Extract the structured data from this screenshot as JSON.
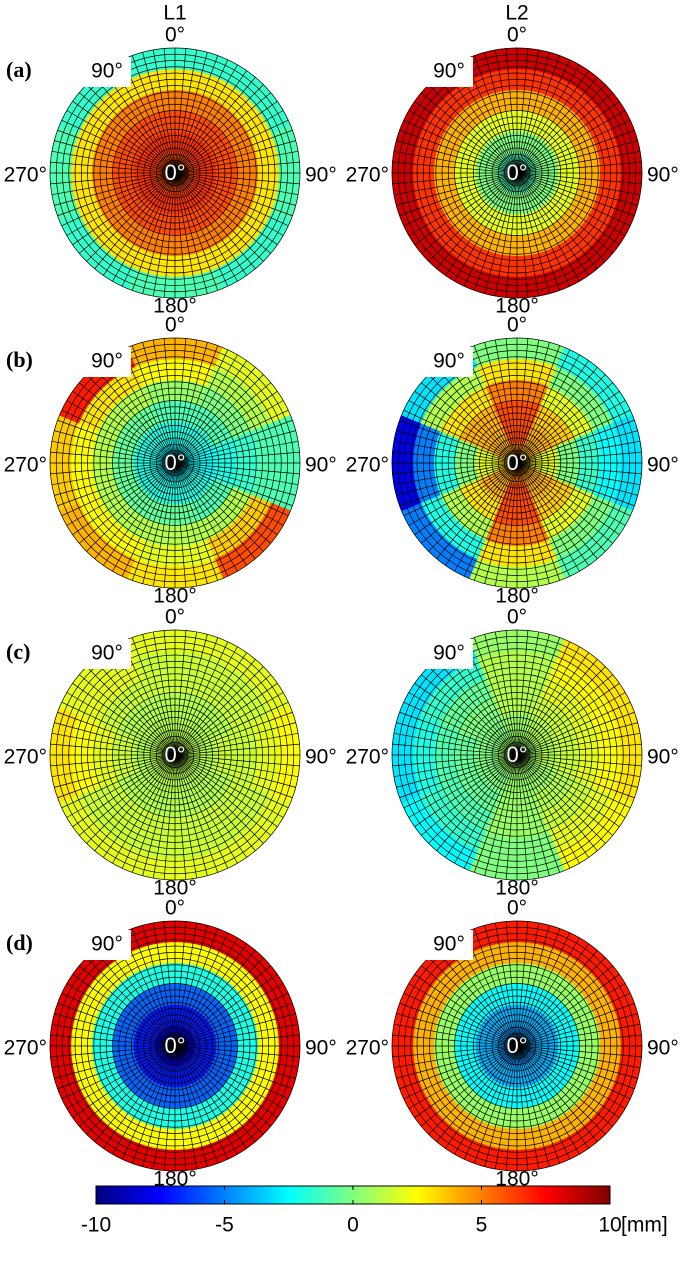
{
  "figure": {
    "column_titles": [
      "L1",
      "L2"
    ],
    "row_labels": [
      "(a)",
      "(b)",
      "(c)",
      "(d)"
    ]
  },
  "colorbar": {
    "lim": [
      -10,
      10
    ],
    "ticks": [
      -10,
      -5,
      0,
      5,
      10
    ],
    "unit": "[mm]",
    "colormap": "jet"
  },
  "chart_data": [
    {
      "type": "polar_heatmap",
      "angle_labels": [
        "0°",
        "90°",
        "180°",
        "270°"
      ],
      "center_label": "0°",
      "corner_label": "90°",
      "values": [
        [
          6,
          6,
          6,
          6,
          6,
          6,
          6,
          6
        ],
        [
          6.5,
          6.5,
          6.5,
          6.5,
          6.5,
          6.5,
          6.5,
          6.5
        ],
        [
          6,
          6,
          6,
          6,
          6,
          6,
          6,
          6
        ],
        [
          5,
          5,
          5,
          5,
          5,
          5,
          5,
          5
        ],
        [
          3,
          3,
          3,
          3,
          3,
          3,
          3,
          3
        ],
        [
          -1.5,
          -1.5,
          -1,
          -1.5,
          -1,
          -1.5,
          -1,
          -1.5
        ]
      ]
    },
    {
      "type": "polar_heatmap",
      "angle_labels": [
        "0°",
        "90°",
        "180°",
        "270°"
      ],
      "center_label": "0°",
      "corner_label": "90°",
      "values": [
        [
          -1,
          -1,
          -1,
          -1,
          -1,
          -1,
          -1,
          -1
        ],
        [
          0,
          0,
          0,
          0,
          0,
          0,
          0,
          0
        ],
        [
          2,
          2,
          2,
          2,
          2,
          2,
          2,
          2
        ],
        [
          4,
          4,
          4,
          4,
          4,
          4,
          4,
          4
        ],
        [
          6.5,
          6.5,
          6.5,
          6.5,
          6.5,
          6.5,
          6.5,
          6.5
        ],
        [
          8.5,
          8.5,
          8.5,
          8.5,
          8.5,
          8.5,
          8.5,
          8.5
        ]
      ]
    },
    {
      "type": "polar_heatmap",
      "angle_labels": [
        "0°",
        "90°",
        "180°",
        "270°"
      ],
      "center_label": "0°",
      "corner_label": "90°",
      "values": [
        [
          -2.5,
          -2.5,
          -2.5,
          -2.5,
          -2.5,
          -2.5,
          -2.5,
          -2.5
        ],
        [
          -2,
          -2,
          -2.5,
          -2,
          -2,
          -2,
          -2,
          -2
        ],
        [
          -1,
          -1,
          -2,
          -1,
          -0.5,
          -0.5,
          -0.5,
          -0.5
        ],
        [
          0.5,
          0,
          -1.5,
          1,
          1,
          1,
          1,
          1
        ],
        [
          2.5,
          1,
          -1,
          3.5,
          2,
          2.5,
          2.5,
          3
        ],
        [
          4,
          2,
          -1,
          6,
          3,
          4,
          3.5,
          7
        ]
      ]
    },
    {
      "type": "polar_heatmap",
      "angle_labels": [
        "0°",
        "90°",
        "180°",
        "270°"
      ],
      "center_label": "0°",
      "corner_label": "90°",
      "values": [
        [
          5,
          4,
          3,
          4,
          5,
          4,
          3,
          4
        ],
        [
          6,
          4,
          2,
          4,
          6,
          4,
          2,
          4
        ],
        [
          6,
          3.5,
          0,
          3.5,
          6,
          3,
          0,
          4
        ],
        [
          5,
          2,
          -1.5,
          2,
          5,
          1,
          -2,
          3
        ],
        [
          3,
          0,
          -2.5,
          0,
          3,
          -2,
          -5,
          1
        ],
        [
          0,
          -2,
          -3,
          -1,
          1,
          -5,
          -8,
          -3
        ]
      ]
    },
    {
      "type": "polar_heatmap",
      "angle_labels": [
        "0°",
        "90°",
        "180°",
        "270°"
      ],
      "center_label": "0°",
      "corner_label": "90°",
      "values": [
        [
          1,
          1,
          1,
          1,
          1,
          1,
          1,
          1
        ],
        [
          1,
          1,
          1,
          1,
          1,
          1,
          1,
          1
        ],
        [
          1,
          1,
          1.5,
          1,
          1,
          1,
          1.5,
          1
        ],
        [
          1.5,
          1.5,
          1.5,
          1.5,
          1.5,
          1.5,
          2,
          1.5
        ],
        [
          1.5,
          1.5,
          2,
          1.5,
          1.5,
          1.5,
          2.5,
          2
        ],
        [
          2,
          2,
          2.5,
          2,
          2,
          2,
          3,
          2
        ]
      ]
    },
    {
      "type": "polar_heatmap",
      "angle_labels": [
        "0°",
        "90°",
        "180°",
        "270°"
      ],
      "center_label": "0°",
      "corner_label": "90°",
      "values": [
        [
          0.5,
          0.5,
          0.5,
          0.5,
          0.5,
          0.5,
          0.5,
          0.5
        ],
        [
          0.5,
          1,
          1,
          0.5,
          0.5,
          0,
          0,
          0
        ],
        [
          1,
          1.5,
          1.5,
          1,
          0.5,
          -0.5,
          -0.5,
          0
        ],
        [
          1,
          2,
          2,
          1.5,
          0.5,
          -1,
          -1,
          -0.5
        ],
        [
          1,
          2.5,
          2.5,
          2,
          0,
          -1.5,
          -2,
          -1.5
        ],
        [
          0.5,
          3,
          3,
          2.5,
          0,
          -2.5,
          -3,
          -3
        ]
      ]
    },
    {
      "type": "polar_heatmap",
      "angle_labels": [
        "0°",
        "90°",
        "180°",
        "270°"
      ],
      "center_label": "0°",
      "corner_label": "90°",
      "values": [
        [
          -7.5,
          -7.5,
          -7.5,
          -7.5,
          -7.5,
          -7.5,
          -7.5,
          -7.5
        ],
        [
          -7,
          -7,
          -7,
          -7,
          -7,
          -7,
          -7,
          -7
        ],
        [
          -5.5,
          -5.5,
          -5.5,
          -5.5,
          -5.5,
          -5.5,
          -5.5,
          -5.5
        ],
        [
          -2,
          -2,
          -2,
          -2,
          -2,
          -2,
          -2,
          -2
        ],
        [
          2.5,
          2.5,
          2.5,
          2.5,
          2.5,
          2.5,
          2.5,
          2.5
        ],
        [
          8,
          8,
          8,
          8,
          8,
          8,
          8,
          8
        ]
      ]
    },
    {
      "type": "polar_heatmap",
      "angle_labels": [
        "0°",
        "90°",
        "180°",
        "270°"
      ],
      "center_label": "0°",
      "corner_label": "90°",
      "values": [
        [
          -4.5,
          -4.5,
          -4.5,
          -4.5,
          -4.5,
          -4.5,
          -4.5,
          -4.5
        ],
        [
          -4,
          -4,
          -4,
          -4,
          -4,
          -4,
          -4,
          -4
        ],
        [
          -2.5,
          -2.5,
          -2.5,
          -2.5,
          -2.5,
          -2.5,
          -2.5,
          -2.5
        ],
        [
          0.5,
          0.5,
          0.5,
          0.5,
          0.5,
          0.5,
          0.5,
          0.5
        ],
        [
          4,
          4,
          4,
          4,
          4,
          4,
          4,
          4
        ],
        [
          7,
          7,
          7,
          7,
          7,
          7,
          7,
          7
        ]
      ]
    }
  ]
}
